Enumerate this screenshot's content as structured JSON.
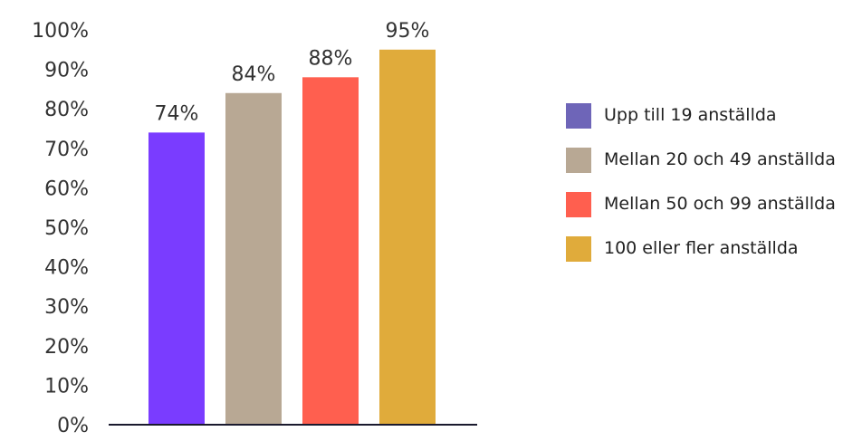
{
  "chart_data": {
    "type": "bar",
    "title": "",
    "xlabel": "",
    "ylabel": "",
    "ylim": [
      0,
      100
    ],
    "y_ticks": [
      "0%",
      "10%",
      "20%",
      "30%",
      "40%",
      "50%",
      "60%",
      "70%",
      "80%",
      "90%",
      "100%"
    ],
    "grid": false,
    "legend_position": "right",
    "categories": [
      "Upp till 19 anställda",
      "Mellan 20 och 49 anställda",
      "Mellan 50 och 99 anställda",
      "100 eller fler anställda"
    ],
    "values": [
      74,
      84,
      88,
      95
    ],
    "data_labels": [
      "74%",
      "84%",
      "88%",
      "95%"
    ],
    "bar_colors": [
      "#7a3cff",
      "#b8a894",
      "#ff5f4f",
      "#e0ab3b"
    ],
    "legend_colors": [
      "#6e65b8",
      "#b8a894",
      "#ff5f4f",
      "#e0ab3b"
    ],
    "legend": [
      "Upp till 19 anställda",
      "Mellan 20 och 49 anställda",
      "Mellan 50 och 99 anställda",
      "100 eller fler anställda"
    ]
  }
}
